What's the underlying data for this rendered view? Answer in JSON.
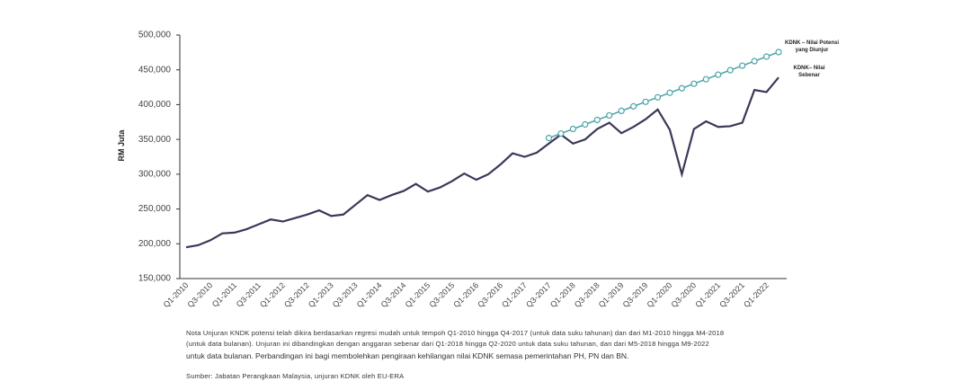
{
  "chart_data": {
    "type": "line",
    "y_label": "RM Juta",
    "categories": [
      "Q1-2010",
      null,
      "Q3-2010",
      null,
      "Q1-2011",
      null,
      "Q3-2011",
      null,
      "Q1-2012",
      null,
      "Q3-2012",
      null,
      "Q1-2013",
      null,
      "Q3-2013",
      null,
      "Q1-2014",
      null,
      "Q3-2014",
      null,
      "Q1-2015",
      null,
      "Q3-2015",
      null,
      "Q1-2016",
      null,
      "Q3-2016",
      null,
      "Q1-2017",
      null,
      "Q3-2017",
      null,
      "Q1-2018",
      null,
      "Q3-2018",
      null,
      "Q1-2019",
      null,
      "Q3-2019",
      null,
      "Q1-2020",
      null,
      "Q3-2020",
      null,
      "Q1-2021",
      null,
      "Q3-2021",
      null,
      "Q1-2022",
      null
    ],
    "series": [
      {
        "name": "KDNK– Nilai Sebenar",
        "color": "#3b3858",
        "values": [
          195000,
          198000,
          205000,
          215000,
          216000,
          221000,
          228000,
          235000,
          232000,
          237000,
          242000,
          248000,
          240000,
          242000,
          256000,
          270000,
          263000,
          270000,
          276000,
          286000,
          275000,
          281000,
          290000,
          301000,
          292000,
          300000,
          314000,
          330000,
          325000,
          331000,
          344000,
          357000,
          344000,
          350000,
          365000,
          374000,
          359000,
          368000,
          379000,
          393000,
          364000,
          300000,
          365000,
          376000,
          368000,
          369000,
          374000,
          421000,
          418000,
          439000
        ]
      },
      {
        "name": "KDNK – Nilai Potensi yang Diunjur",
        "color": "#4aa3a6",
        "values": [
          null,
          null,
          null,
          null,
          null,
          null,
          null,
          null,
          null,
          null,
          null,
          null,
          null,
          null,
          null,
          null,
          null,
          null,
          null,
          null,
          null,
          null,
          null,
          null,
          null,
          null,
          null,
          null,
          null,
          null,
          352000,
          358500,
          365000,
          371500,
          378000,
          384500,
          391000,
          397500,
          404000,
          410500,
          417000,
          423500,
          430000,
          436500,
          443000,
          449500,
          456000,
          462500,
          469000,
          475500
        ]
      }
    ],
    "ylim": [
      150000,
      500000
    ],
    "yticks": [
      {
        "value": 150000,
        "label": "150,000"
      },
      {
        "value": 200000,
        "label": "200,000"
      },
      {
        "value": 250000,
        "label": "250,000"
      },
      {
        "value": 300000,
        "label": "300,000"
      },
      {
        "value": 350000,
        "label": "350,000"
      },
      {
        "value": 400000,
        "label": "400,000"
      },
      {
        "value": 450000,
        "label": "450,000"
      },
      {
        "value": 500000,
        "label": "500,000"
      }
    ],
    "notes": [
      "Nota Unjuran KNDK potensi telah dikira berdasarkan regresi mudah untuk tempoh Q1-2010 hingga Q4-2017 (untuk data suku tahunan) dan dari M1-2010 hingga M4-2018",
      "(untuk data bulanan). Unjuran ini dibandingkan dengan anggaran sebenar dari Q1-2018 hingga Q2-2020 untuk data suku tahunan, dan dari M5-2018 hingga M9-2022",
      "untuk data bulanan. Perbandingan ini bagi membolehkan pengiraan kehilangan nilai KDNK semasa pemerintahan PH, PN dan BN."
    ],
    "source": "Sumber: Jabatan Perangkaan Malaysia, unjuran KDNK oleh EU-ERA"
  }
}
